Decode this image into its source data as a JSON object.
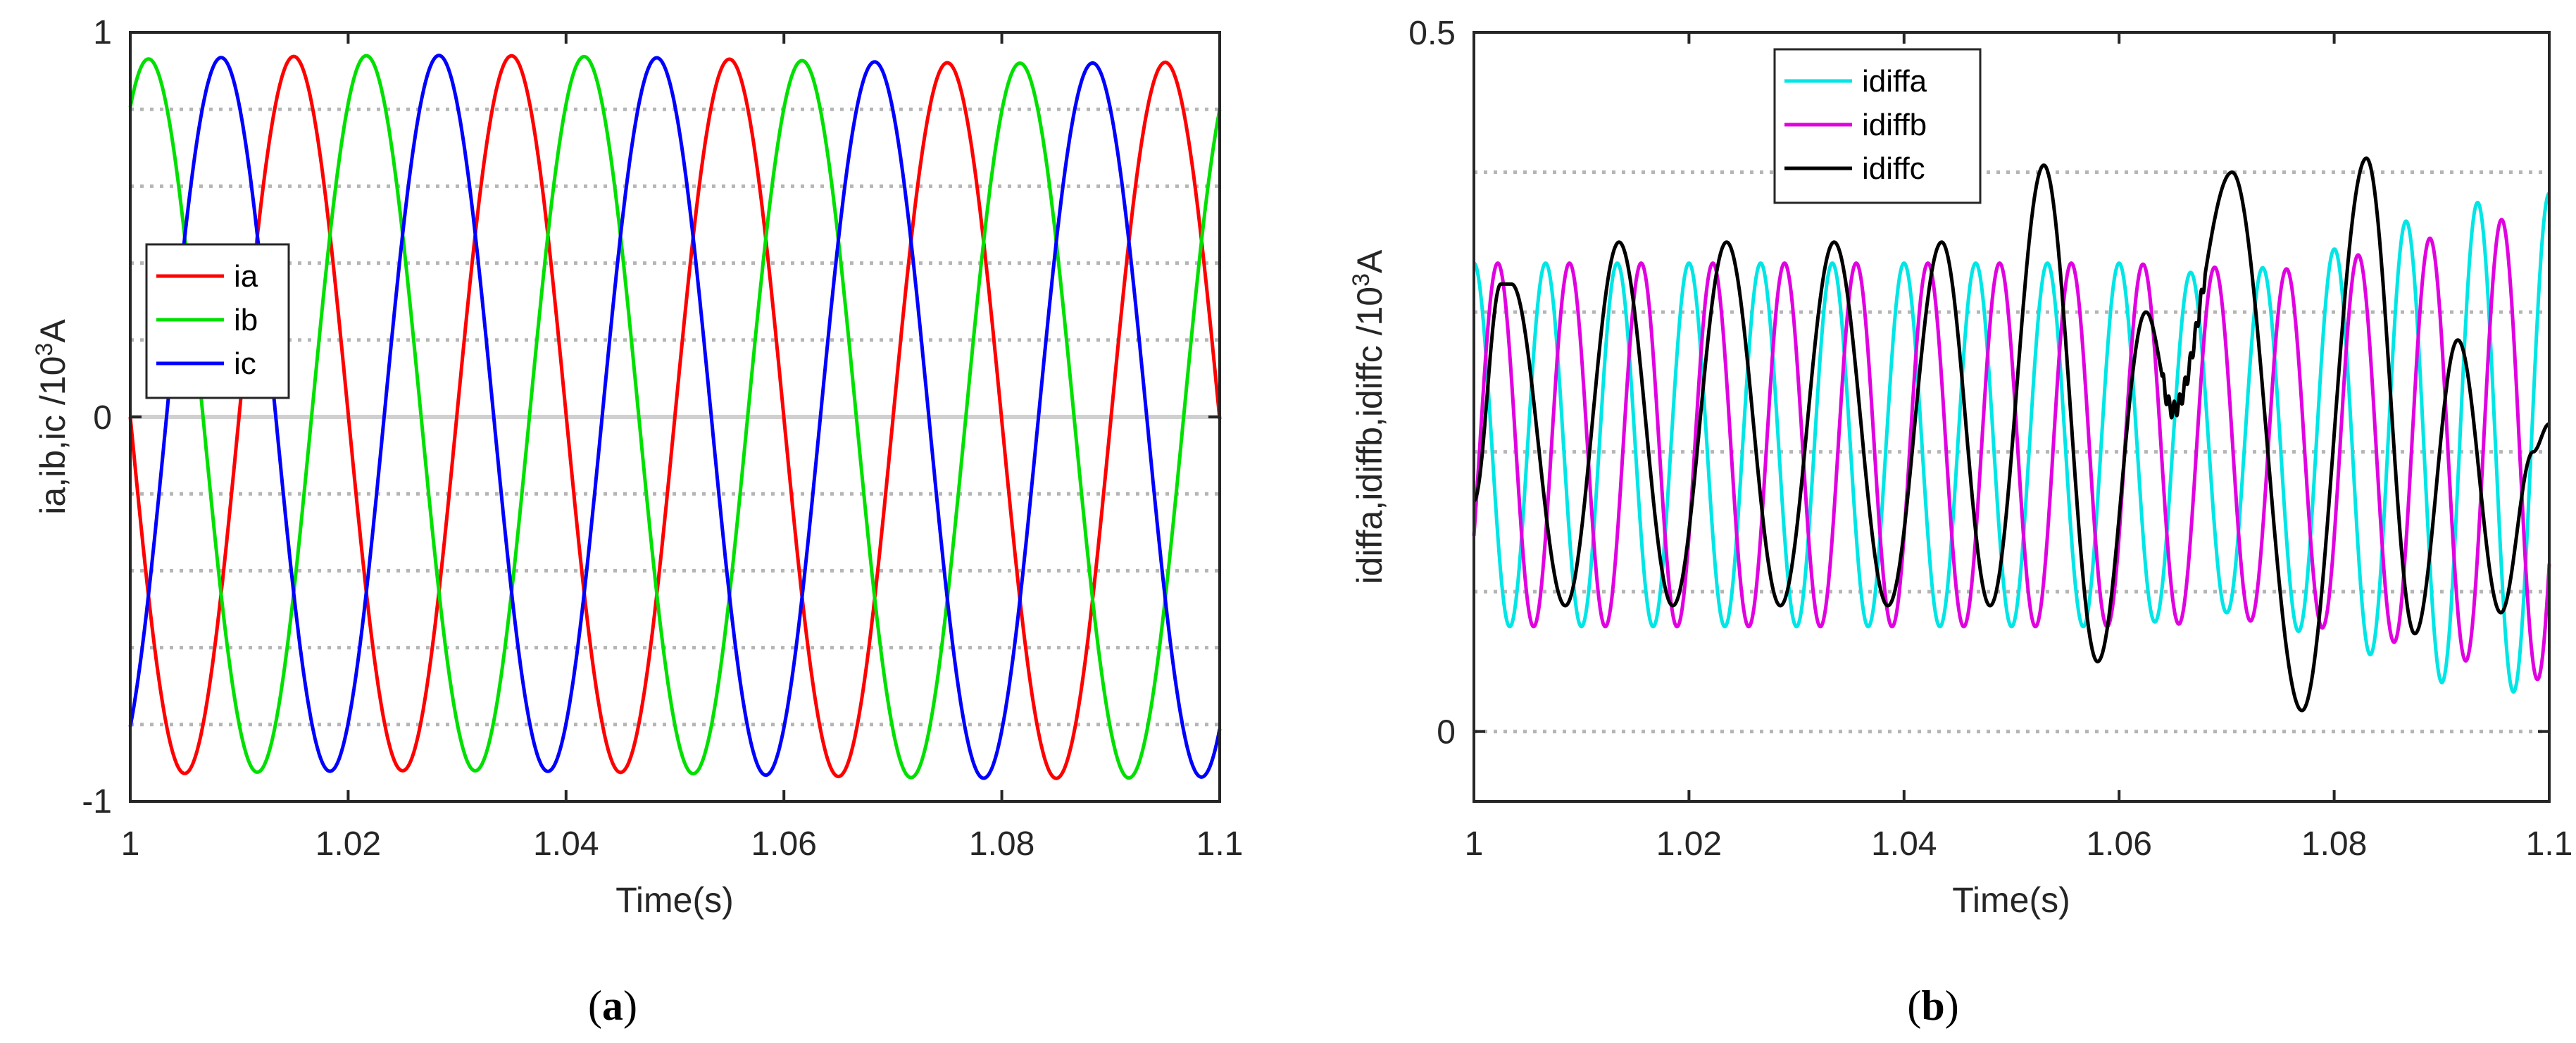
{
  "chart_data": [
    {
      "type": "line",
      "caption": "(a)",
      "xlabel": "Time(s)",
      "ylabel": "ia,ib,ic /10³A",
      "xlim": [
        1.0,
        1.1
      ],
      "ylim": [
        -1,
        1
      ],
      "xticks": [
        "1",
        "1.02",
        "1.04",
        "1.06",
        "1.08",
        "1.1"
      ],
      "yticks": [
        "-1",
        "0",
        "1"
      ],
      "dotted_grid_y": [
        -0.8,
        -0.6,
        -0.4,
        -0.2,
        0.2,
        0.4,
        0.6,
        0.8
      ],
      "legend_position": "left",
      "frequency_hz": 50,
      "series": [
        {
          "name": "ia",
          "color": "#ff0000",
          "amplitude": 0.93,
          "phase_deg": 180
        },
        {
          "name": "ib",
          "color": "#00e000",
          "amplitude": 0.93,
          "phase_deg": 60
        },
        {
          "name": "ic",
          "color": "#0000ff",
          "amplitude": 0.93,
          "phase_deg": -60
        }
      ]
    },
    {
      "type": "line",
      "caption": "(b)",
      "xlabel": "Time(s)",
      "ylabel": "idiffa,idiffb,idiffc /10³A",
      "xlim": [
        1.0,
        1.1
      ],
      "ylim": [
        -0.05,
        0.5
      ],
      "xticks": [
        "1",
        "1.02",
        "1.04",
        "1.06",
        "1.08",
        "1.1"
      ],
      "yticks": [
        "0",
        "0.5"
      ],
      "dotted_grid_y": [
        0,
        0.1,
        0.2,
        0.3,
        0.4
      ],
      "legend_position": "top-left",
      "series": [
        {
          "name": "idiffa",
          "color": "#00e5e5",
          "points": [
            [
              1.0,
              0.235
            ],
            [
              1.0125,
              0.235
            ],
            [
              1.025,
              0.235
            ],
            [
              1.0375,
              0.235
            ],
            [
              1.05,
              0.235
            ],
            [
              1.0625,
              0.235
            ],
            [
              1.075,
              0.235
            ],
            [
              1.08,
              0.255
            ],
            [
              1.09,
              0.31
            ],
            [
              1.095,
              0.31
            ],
            [
              1.1,
              0.235
            ]
          ],
          "center": 0.205,
          "amp_points": [
            [
              1.0,
              0.13
            ],
            [
              1.06,
              0.13
            ],
            [
              1.07,
              0.12
            ],
            [
              1.08,
              0.14
            ],
            [
              1.09,
              0.17
            ],
            [
              1.1,
              0.18
            ]
          ],
          "frequency_hz": 150,
          "phase_deg": 90
        },
        {
          "name": "idiffb",
          "color": "#e000e0",
          "center": 0.205,
          "amp_points": [
            [
              1.0,
              0.13
            ],
            [
              1.06,
              0.13
            ],
            [
              1.075,
              0.125
            ],
            [
              1.085,
              0.14
            ],
            [
              1.095,
              0.16
            ],
            [
              1.1,
              0.17
            ]
          ],
          "frequency_hz": 150,
          "phase_deg": -30
        },
        {
          "name": "idiffc",
          "color": "#000000",
          "points": [
            [
              1.0,
              0.165
            ],
            [
              1.0025,
              0.32
            ],
            [
              1.0035,
              0.32
            ],
            [
              1.0085,
              0.09
            ],
            [
              1.0135,
              0.35
            ],
            [
              1.0185,
              0.09
            ],
            [
              1.0235,
              0.35
            ],
            [
              1.0285,
              0.09
            ],
            [
              1.0335,
              0.35
            ],
            [
              1.0385,
              0.09
            ],
            [
              1.0435,
              0.35
            ],
            [
              1.048,
              0.09
            ],
            [
              1.053,
              0.405
            ],
            [
              1.058,
              0.05
            ],
            [
              1.0625,
              0.3
            ],
            [
              1.065,
              0.23
            ],
            [
              1.0705,
              0.4
            ],
            [
              1.077,
              0.015
            ],
            [
              1.083,
              0.41
            ],
            [
              1.0875,
              0.07
            ],
            [
              1.0915,
              0.28
            ],
            [
              1.0955,
              0.085
            ],
            [
              1.0985,
              0.2
            ],
            [
              1.1,
              0.22
            ]
          ]
        }
      ]
    }
  ]
}
